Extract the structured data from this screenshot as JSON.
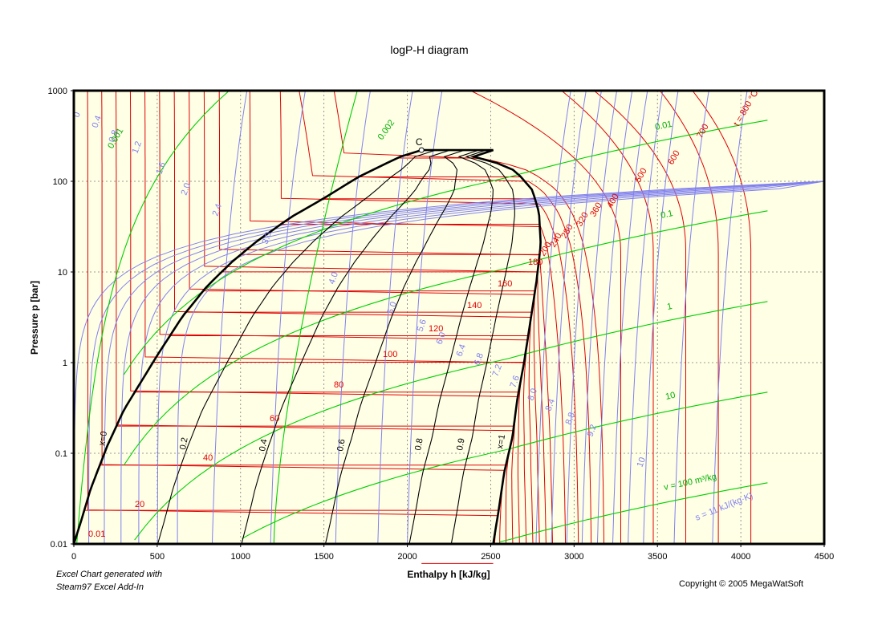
{
  "chart_data": {
    "type": "line",
    "title": "logP-H diagram",
    "xlabel": "Enthalpy h [kJ/kg]",
    "ylabel": "Pressure p [bar]",
    "xlim": [
      0,
      4500
    ],
    "ylim": [
      0.01,
      1000
    ],
    "y_scale": "log",
    "x_ticks": [
      "0",
      "500",
      "1000",
      "1500",
      "2000",
      "2500",
      "3000",
      "3500",
      "4000",
      "4500"
    ],
    "y_ticks": [
      "0.01",
      "0.1",
      "1",
      "10",
      "100",
      "1000"
    ],
    "grid": true,
    "background": "#FFFFE6",
    "critical_point": {
      "label": "C",
      "h": 2085,
      "p": 221
    },
    "saturated_liquid": [
      [
        0,
        0.01
      ],
      [
        40,
        0.017
      ],
      [
        100,
        0.04
      ],
      [
        200,
        0.12
      ],
      [
        300,
        0.3
      ],
      [
        400,
        0.6
      ],
      [
        500,
        1.2
      ],
      [
        650,
        3.2
      ],
      [
        800,
        7
      ],
      [
        950,
        13
      ],
      [
        1100,
        22
      ],
      [
        1300,
        40
      ],
      [
        1500,
        65
      ],
      [
        1700,
        110
      ],
      [
        1850,
        150
      ],
      [
        1950,
        185
      ],
      [
        2085,
        221
      ]
    ],
    "saturated_vapor": [
      [
        2085,
        221
      ],
      [
        2300,
        205
      ],
      [
        2500,
        170
      ],
      [
        2650,
        130
      ],
      [
        2750,
        80
      ],
      [
        2790,
        45
      ],
      [
        2800,
        20
      ],
      [
        2775,
        8
      ],
      [
        2740,
        3
      ],
      [
        2700,
        1
      ],
      [
        2660,
        0.4
      ],
      [
        2630,
        0.15
      ],
      [
        2580,
        0.06
      ],
      [
        2550,
        0.025
      ],
      [
        2515,
        0.01
      ]
    ],
    "quality_lines": [
      {
        "name": "x=0",
        "x": 0.0
      },
      {
        "name": "0.2",
        "x": 0.2
      },
      {
        "name": "0.4",
        "x": 0.4
      },
      {
        "name": "0.6",
        "x": 0.6
      },
      {
        "name": "0.8",
        "x": 0.8
      },
      {
        "name": "0.9",
        "x": 0.9
      },
      {
        "name": "x=1",
        "x": 1.0
      }
    ],
    "isotherm_labels": [
      "0.01",
      "20",
      "40",
      "60",
      "80",
      "100",
      "120",
      "140",
      "160",
      "180",
      "200",
      "240",
      "280",
      "320",
      "360",
      "400",
      "500",
      "600",
      "700",
      "t = 800 °C"
    ],
    "isentrope_labels": [
      "0",
      "0.4",
      "0.8",
      "1.2",
      "1.6",
      "2.0",
      "2.4",
      "3.0",
      "4.0",
      "5.0",
      "5.6",
      "6.0",
      "6.4",
      "6.8",
      "7.2",
      "7.6",
      "8.0",
      "8.4",
      "8.8",
      "9.2",
      "10",
      "s = 11 kJ/(kg·K)"
    ],
    "isochore_labels": [
      "0.001",
      "0.002",
      "0.01",
      "0.1",
      "1",
      "10",
      "v = 100 m³/kg"
    ],
    "colors": {
      "isotherm": "#E00000",
      "isentrope": "#8080F0",
      "isochore": "#00D000",
      "saturation": "#000000",
      "quality": "#000000"
    }
  },
  "footer": {
    "left_line1": "Excel Chart generated with",
    "left_line2": "Steam97 Excel Add-In",
    "copyright": "Copyright © 2005 MegaWatSoft"
  }
}
